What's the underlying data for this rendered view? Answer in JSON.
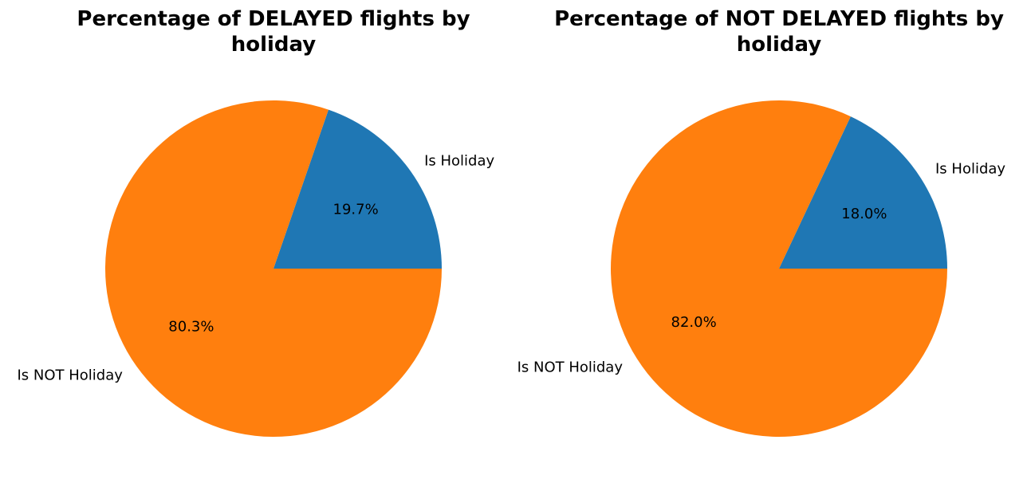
{
  "colors": {
    "series_1": "#1f77b4",
    "series_2": "#ff7f0e",
    "background": "#ffffff"
  },
  "chart_data": [
    {
      "type": "pie",
      "title_lines": [
        "Percentage of DELAYED flights by",
        "holiday"
      ],
      "categories": [
        "Is Holiday",
        "Is NOT Holiday"
      ],
      "values": [
        19.7,
        80.3
      ],
      "value_labels": [
        "19.7%",
        "80.3%"
      ],
      "colors": [
        "#1f77b4",
        "#ff7f0e"
      ]
    },
    {
      "type": "pie",
      "title_lines": [
        "Percentage of NOT DELAYED flights by",
        "holiday"
      ],
      "categories": [
        "Is Holiday",
        "Is NOT Holiday"
      ],
      "values": [
        18.0,
        82.0
      ],
      "value_labels": [
        "18.0%",
        "82.0%"
      ],
      "colors": [
        "#1f77b4",
        "#ff7f0e"
      ]
    }
  ]
}
